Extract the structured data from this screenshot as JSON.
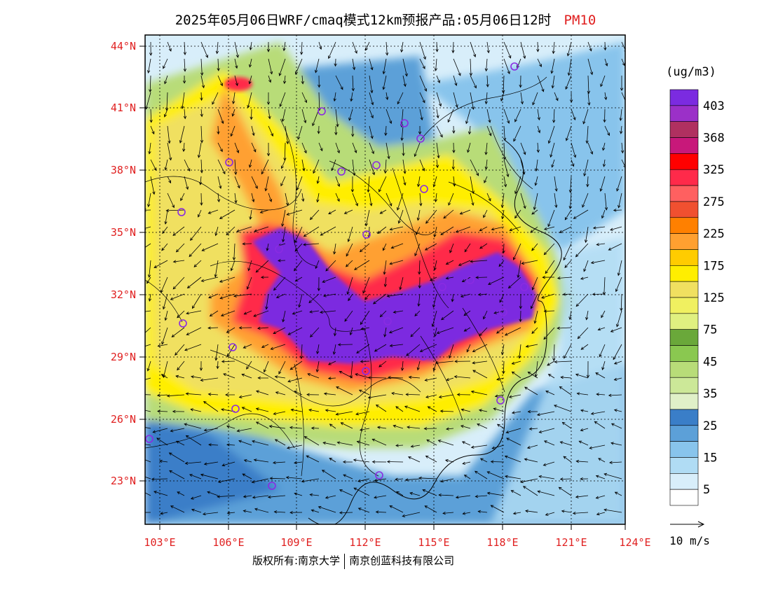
{
  "header": {
    "title": "2025年05月06日WRF/cmaq模式12km预报产品:05月06日12时",
    "pollutant": "PM10"
  },
  "map": {
    "lat_labels": [
      "44°N",
      "41°N",
      "38°N",
      "35°N",
      "32°N",
      "29°N",
      "26°N",
      "23°N"
    ],
    "lon_labels": [
      "103°E",
      "106°E",
      "109°E",
      "112°E",
      "115°E",
      "118°E",
      "121°E",
      "124°E"
    ]
  },
  "legend": {
    "unit": "(ug/m3)",
    "ticks": [
      "403",
      "368",
      "325",
      "275",
      "225",
      "175",
      "125",
      "75",
      "45",
      "35",
      "25",
      "15",
      "5"
    ],
    "colors": [
      "#7b2be0",
      "#9b30c8",
      "#b03060",
      "#c8187a",
      "#ff0000",
      "#ff2a4a",
      "#ff6060",
      "#f05030",
      "#ff8000",
      "#ffa030",
      "#ffcc00",
      "#ffee00",
      "#f0e060",
      "#f0f060",
      "#e0f080",
      "#6aa83a",
      "#8ac850",
      "#b8dc78",
      "#cce898",
      "#e0f0c8",
      "#3a7ec8",
      "#5ca0d8",
      "#88c4ec",
      "#b0dcf4",
      "#d8eefa",
      "#ffffff"
    ]
  },
  "wind": {
    "scale_label": "10 m/s"
  },
  "footer": {
    "left": "版权所有:南京大学",
    "right": "南京创蓝科技有限公司"
  }
}
